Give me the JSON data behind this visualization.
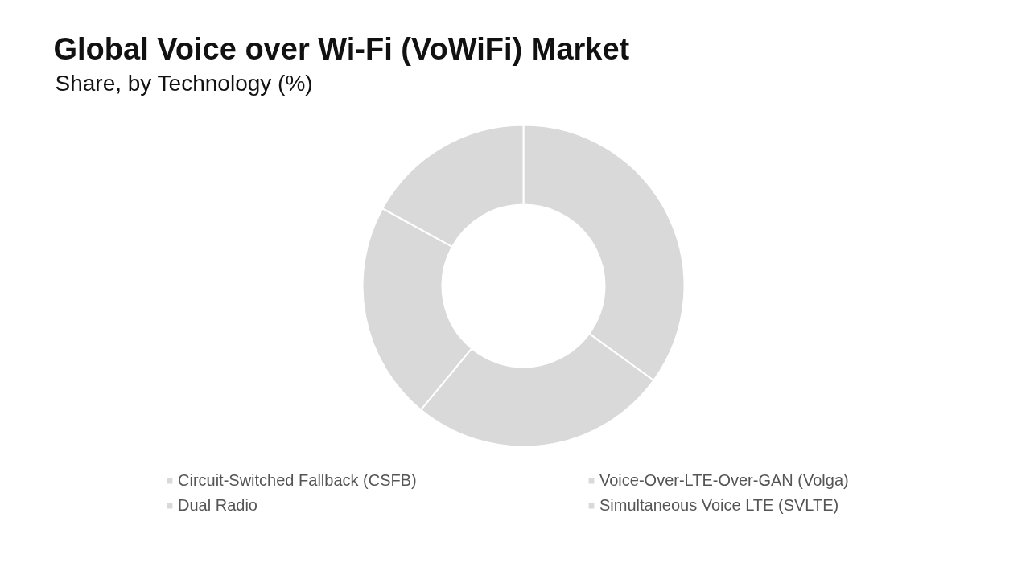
{
  "chart_data": {
    "type": "donut",
    "title": "Global Voice over Wi-Fi (VoWiFi) Market",
    "subtitle": "Share, by Technology (%)",
    "categories": [
      "Circuit-Switched Fallback (CSFB)",
      "Voice-Over-LTE-Over-GAN (Volga)",
      "Dual Radio",
      "Simultaneous Voice LTE (SVLTE)"
    ],
    "values": [
      35,
      26,
      22,
      17
    ],
    "colors": [
      "#d9d9d9",
      "#d9d9d9",
      "#d9d9d9",
      "#d9d9d9"
    ],
    "legend": "bottom"
  }
}
